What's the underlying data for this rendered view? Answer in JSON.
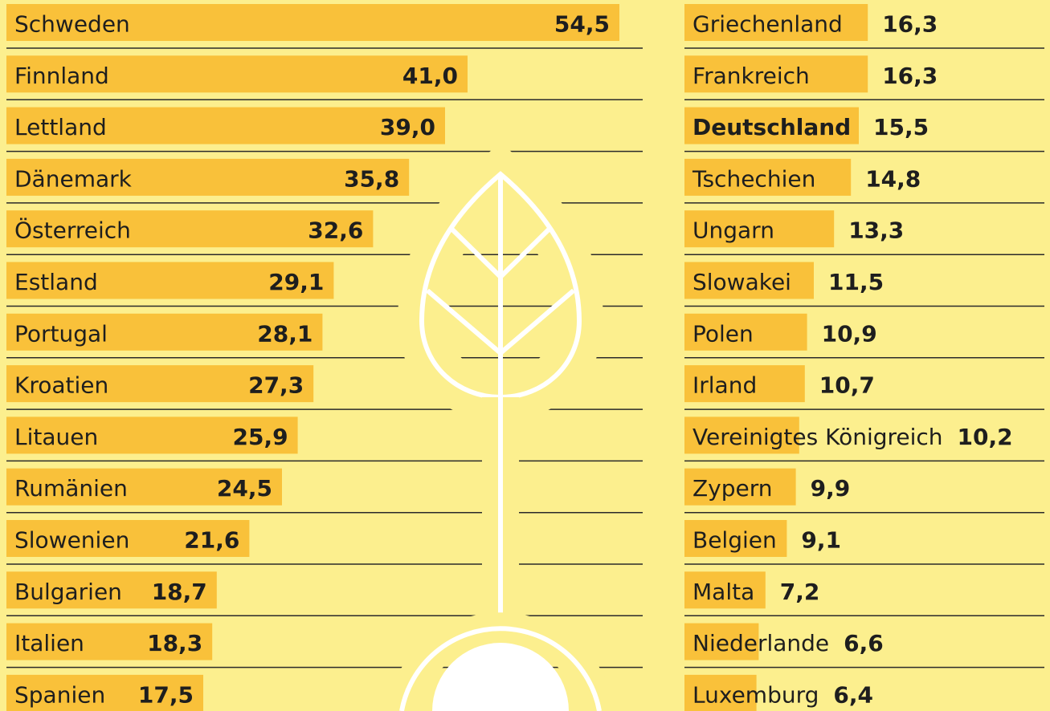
{
  "chart_data": [
    {
      "type": "bar",
      "orientation": "horizontal",
      "color": "#f9c13a",
      "categories": [
        "Schweden",
        "Finnland",
        "Lettland",
        "Dänemark",
        "Österreich",
        "Estland",
        "Portugal",
        "Kroatien",
        "Litauen",
        "Rumänien",
        "Slowenien",
        "Bulgarien",
        "Italien",
        "Spanien"
      ],
      "values": [
        54.5,
        41.0,
        39.0,
        35.8,
        32.6,
        29.1,
        28.1,
        27.3,
        25.9,
        24.5,
        21.6,
        18.7,
        18.3,
        17.5
      ],
      "value_labels": [
        "54,5",
        "41,0",
        "39,0",
        "35,8",
        "32,6",
        "29,1",
        "28,1",
        "27,3",
        "25,9",
        "24,5",
        "21,6",
        "18,7",
        "18,3",
        "17,5"
      ]
    },
    {
      "type": "bar",
      "orientation": "horizontal",
      "color": "#f9c13a",
      "highlight": "Deutschland",
      "categories": [
        "Griechenland",
        "Frankreich",
        "Deutschland",
        "Tschechien",
        "Ungarn",
        "Slowakei",
        "Polen",
        "Irland",
        "Vereinigtes Königreich",
        "Zypern",
        "Belgien",
        "Malta",
        "Niederlande",
        "Luxemburg"
      ],
      "values": [
        16.3,
        16.3,
        15.5,
        14.8,
        13.3,
        11.5,
        10.9,
        10.7,
        10.2,
        9.9,
        9.1,
        7.2,
        6.6,
        6.4
      ],
      "value_labels": [
        "16,3",
        "16,3",
        "15,5",
        "14,8",
        "13,3",
        "11,5",
        "10,9",
        "10,7",
        "10,2",
        "9,9",
        "9,1",
        "7,2",
        "6,6",
        "6,4"
      ]
    }
  ]
}
